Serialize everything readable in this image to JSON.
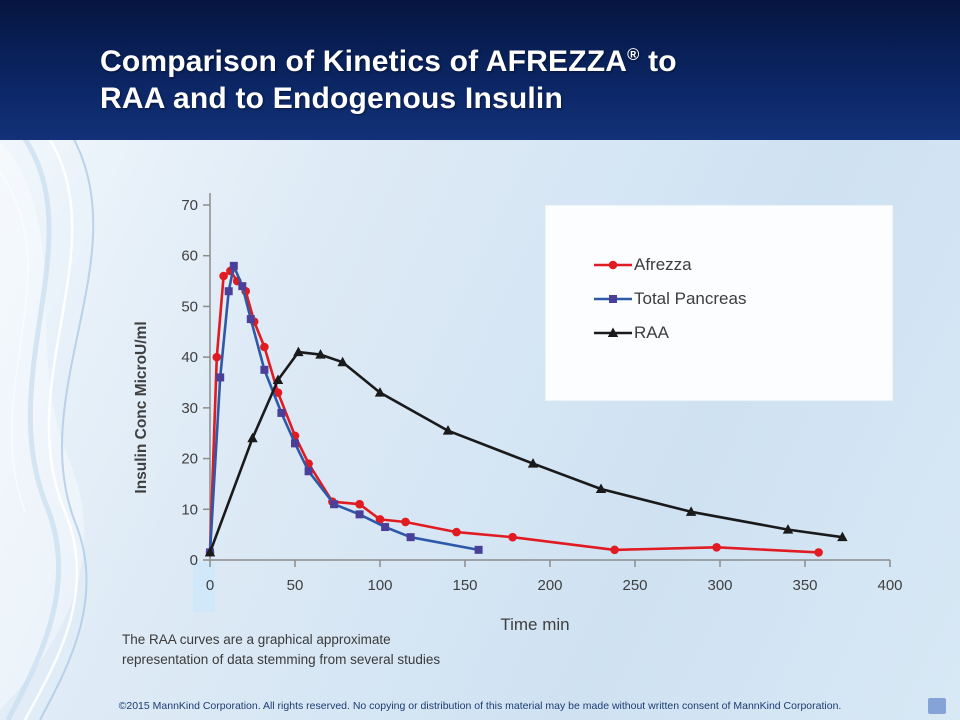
{
  "slide": {
    "title": {
      "prefix": "Comparison of Kinetics of AFREZZA",
      "registered_mark": "®",
      "suffix": " to",
      "line2": "RAA and to Endogenous Insulin"
    },
    "footnote_line1": "The RAA curves are a graphical approximate",
    "footnote_line2": "representation of data stemming from several studies",
    "copyright": "©2015 MannKind Corporation. All rights reserved. No copying or distribution of this material may be made without written consent of MannKind Corporation."
  },
  "colors": {
    "header_navy_top": "#05153f",
    "header_navy_bottom": "#123179",
    "body_light_blue": "#d3e4f3",
    "axis_gray": "#8c8c8c",
    "text_gray": "#3f3f3f",
    "footer_navy": "#1c3c72"
  },
  "chart_data": {
    "type": "line",
    "title": "",
    "xlabel": "Time min",
    "ylabel": "Insulin Conc MicroU/ml",
    "xlim": [
      0,
      400
    ],
    "ylim": [
      0,
      70
    ],
    "x_ticks": [
      0,
      50,
      100,
      150,
      200,
      250,
      300,
      350,
      400
    ],
    "y_ticks": [
      0,
      10,
      20,
      30,
      40,
      50,
      60,
      70
    ],
    "grid": false,
    "legend_position": "upper right",
    "series": [
      {
        "name": "Afrezza",
        "color": "#e11b22",
        "marker": "circle",
        "x": [
          0,
          4,
          8,
          12,
          16,
          21,
          26,
          32,
          40,
          50,
          58,
          72,
          88,
          100,
          115,
          145,
          178,
          238,
          298,
          358
        ],
        "y": [
          1.5,
          40,
          56,
          57,
          55,
          53,
          47,
          42,
          33,
          24.5,
          19,
          11.5,
          11,
          8,
          7.5,
          5.5,
          4.5,
          2,
          2.5,
          1.5
        ]
      },
      {
        "name": "Total Pancreas",
        "color": "#2e58a8",
        "marker": "square",
        "marker_color": "#4a4099",
        "x": [
          0,
          6,
          11,
          14,
          19,
          24,
          32,
          42,
          50,
          58,
          73,
          88,
          103,
          118,
          158
        ],
        "y": [
          1.5,
          36,
          53,
          58,
          54,
          47.5,
          37.5,
          29,
          23,
          17.5,
          11,
          9,
          6.5,
          4.5,
          2
        ]
      },
      {
        "name": "RAA",
        "color": "#1a1a1a",
        "marker": "triangle",
        "x": [
          0,
          25,
          40,
          52,
          65,
          78,
          100,
          140,
          190,
          230,
          283,
          340,
          372
        ],
        "y": [
          1.5,
          24,
          35.5,
          41,
          40.5,
          39,
          33,
          25.5,
          19,
          14,
          9.5,
          6,
          4.5
        ]
      }
    ]
  }
}
